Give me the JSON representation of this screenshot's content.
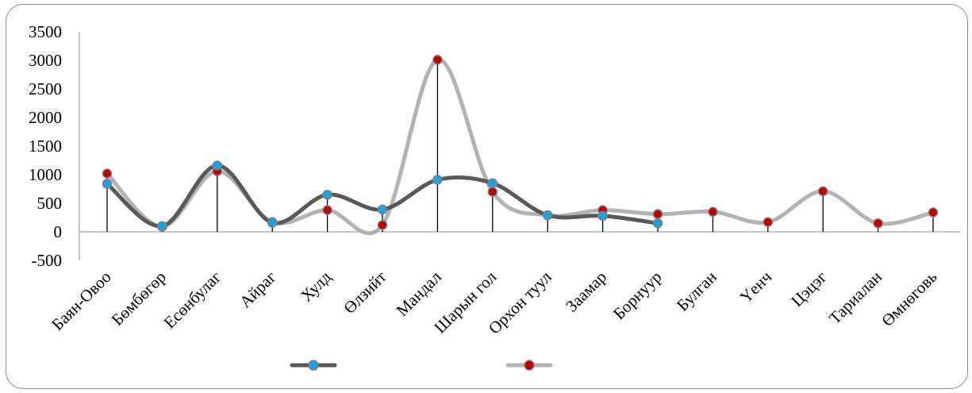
{
  "chart_data": {
    "type": "line",
    "title": "",
    "xlabel": "",
    "ylabel": "",
    "ylim": [
      -500,
      3500
    ],
    "yticks": [
      -500,
      0,
      500,
      1000,
      1500,
      2000,
      2500,
      3000,
      3500
    ],
    "ytick_labels": [
      "-500",
      "0",
      "500",
      "1000",
      "1500",
      "2000",
      "2500",
      "3000",
      "3500"
    ],
    "categories": [
      "Баян-Овоо",
      "Бөмбөгөр",
      "Есөнбулаг",
      "Айраг",
      "Хулд",
      "Өлзийт",
      "Мандал",
      "Шарын гол",
      "Орхон туул",
      "Заамар",
      "Борнуур",
      "Булган",
      "Үенч",
      "Цэцэг",
      "Тариалан",
      "Өмнөговь"
    ],
    "grid": false,
    "legend_position": "bottom",
    "drop_lines": true,
    "series": [
      {
        "name": "",
        "color": "#595959",
        "marker_color": "#1aa3e0",
        "values": [
          840,
          100,
          1160,
          160,
          650,
          390,
          910,
          850,
          290,
          280,
          150,
          null,
          null,
          null,
          null,
          null
        ]
      },
      {
        "name": "",
        "color": "#b3b3b3",
        "marker_color": "#c00000",
        "values": [
          1020,
          90,
          1060,
          170,
          380,
          120,
          3010,
          700,
          290,
          380,
          310,
          350,
          170,
          710,
          150,
          340
        ]
      }
    ]
  }
}
